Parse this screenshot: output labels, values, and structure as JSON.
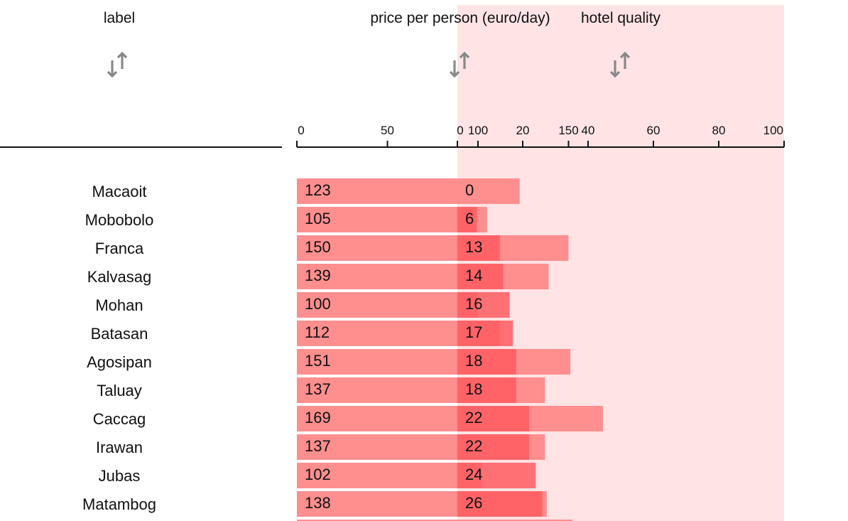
{
  "columns": {
    "label": "label",
    "price": "price per person (euro/day)",
    "quality": "hotel quality"
  },
  "colors": {
    "price_bar": "#ff8e8e",
    "quality_bar": "#ff5c62",
    "quality_bg": "#ffe3e5",
    "sort_icon": "#888888"
  },
  "chart_data": {
    "type": "bar",
    "categories": [
      "Macaoit",
      "Mobobolo",
      "Franca",
      "Kalvasag",
      "Mohan",
      "Batasan",
      "Agosipan",
      "Taluay",
      "Caccag",
      "Irawan",
      "Jubas",
      "Matambog"
    ],
    "series": [
      {
        "name": "price per person (euro/day)",
        "values": [
          123,
          105,
          150,
          139,
          100,
          112,
          151,
          137,
          169,
          137,
          102,
          138
        ]
      },
      {
        "name": "hotel quality",
        "values": [
          0,
          6,
          13,
          14,
          16,
          17,
          18,
          18,
          22,
          22,
          24,
          26
        ]
      }
    ],
    "price_axis": {
      "min": 0,
      "max": 100,
      "ticks": [
        0,
        50,
        100,
        150
      ]
    },
    "quality_axis": {
      "min": 0,
      "max": 100,
      "ticks": [
        0,
        20,
        40,
        60,
        80,
        100
      ]
    }
  }
}
